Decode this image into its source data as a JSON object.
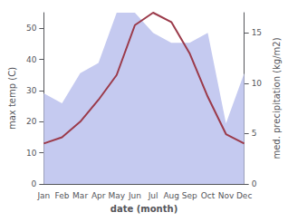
{
  "chart_data": {
    "type": "line",
    "xlabel": "date (month)",
    "ylabel": "max temp (C)",
    "y2label": "med. precipitation (kg/m2)",
    "categories": [
      "Jan",
      "Feb",
      "Mar",
      "Apr",
      "May",
      "Jun",
      "Jul",
      "Aug",
      "Sep",
      "Oct",
      "Nov",
      "Dec"
    ],
    "series": [
      {
        "type": "area",
        "color": "#c5caf0",
        "axis": "y2",
        "values": [
          9,
          8,
          11,
          12,
          17,
          17,
          15,
          14,
          14,
          15,
          6,
          11
        ]
      },
      {
        "type": "line",
        "color": "#9b3a4a",
        "values": [
          13,
          15,
          20,
          27,
          35,
          51,
          55,
          52,
          42,
          28,
          16,
          13
        ]
      }
    ],
    "ylim": [
      0,
      55
    ],
    "yticks": [
      0,
      10,
      20,
      30,
      40,
      50
    ],
    "y2lim": [
      0,
      17
    ],
    "y2ticks": [
      0,
      5,
      10,
      15
    ],
    "grid": false
  }
}
